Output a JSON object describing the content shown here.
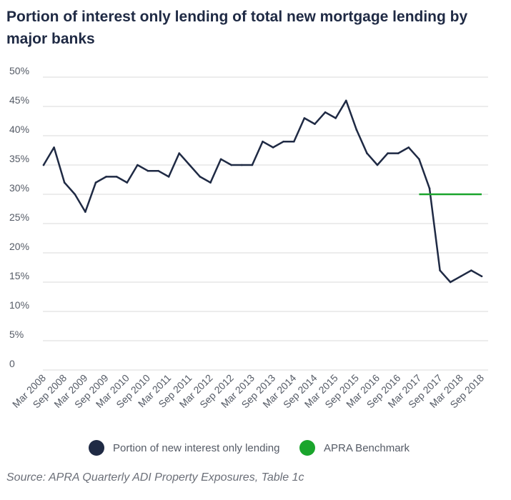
{
  "colors": {
    "series_line": "#1f2a44",
    "benchmark_line": "#1aa52c",
    "grid": "#d9d9d9",
    "text": "#555b66"
  },
  "chart_data": {
    "type": "line",
    "title": "Portion of interest only lending of total new mortgage lending by major banks",
    "xlabel": "",
    "ylabel": "",
    "ylim": [
      0,
      50
    ],
    "y_ticks": [
      {
        "value": 0,
        "label": "0"
      },
      {
        "value": 5,
        "label": "5%"
      },
      {
        "value": 10,
        "label": "10%"
      },
      {
        "value": 15,
        "label": "15%"
      },
      {
        "value": 20,
        "label": "20%"
      },
      {
        "value": 25,
        "label": "25%"
      },
      {
        "value": 30,
        "label": "30%"
      },
      {
        "value": 35,
        "label": "35%"
      },
      {
        "value": 40,
        "label": "40%"
      },
      {
        "value": 45,
        "label": "45%"
      },
      {
        "value": 50,
        "label": "50%"
      }
    ],
    "x_count": 43,
    "x_tick_labels": [
      {
        "index": 0,
        "label": "Mar 2008"
      },
      {
        "index": 2,
        "label": "Sep 2008"
      },
      {
        "index": 4,
        "label": "Mar 2009"
      },
      {
        "index": 6,
        "label": "Sep 2009"
      },
      {
        "index": 8,
        "label": "Mar 2010"
      },
      {
        "index": 10,
        "label": "Sep 2010"
      },
      {
        "index": 12,
        "label": "Mar 2011"
      },
      {
        "index": 14,
        "label": "Sep 2011"
      },
      {
        "index": 16,
        "label": "Mar 2012"
      },
      {
        "index": 18,
        "label": "Sep 2012"
      },
      {
        "index": 20,
        "label": "Mar 2013"
      },
      {
        "index": 22,
        "label": "Sep 2013"
      },
      {
        "index": 24,
        "label": "Mar 2014"
      },
      {
        "index": 26,
        "label": "Sep 2014"
      },
      {
        "index": 28,
        "label": "Mar 2015"
      },
      {
        "index": 30,
        "label": "Sep 2015"
      },
      {
        "index": 32,
        "label": "Mar 2016"
      },
      {
        "index": 34,
        "label": "Sep 2016"
      },
      {
        "index": 36,
        "label": "Mar 2017"
      },
      {
        "index": 38,
        "label": "Sep 2017"
      },
      {
        "index": 40,
        "label": "Mar 2018"
      },
      {
        "index": 42,
        "label": "Sep 2018"
      }
    ],
    "series": [
      {
        "name": "Portion of new interest only lending",
        "values": [
          35,
          38,
          32,
          30,
          27,
          32,
          33,
          33,
          32,
          35,
          34,
          34,
          33,
          37,
          35,
          33,
          32,
          36,
          35,
          35,
          35,
          39,
          38,
          39,
          39,
          43,
          42,
          44,
          43,
          46,
          41,
          37,
          35,
          37,
          37,
          38,
          36,
          31,
          17,
          15,
          16,
          17,
          16
        ]
      },
      {
        "name": "APRA Benchmark",
        "x_start_index": 36,
        "x_end_index": 42,
        "value": 30
      }
    ],
    "legend": [
      "Portion of new interest only lending",
      "APRA Benchmark"
    ],
    "legend_position": "bottom",
    "grid": true
  },
  "source": "Source: APRA Quarterly ADI Property Exposures, Table 1c"
}
